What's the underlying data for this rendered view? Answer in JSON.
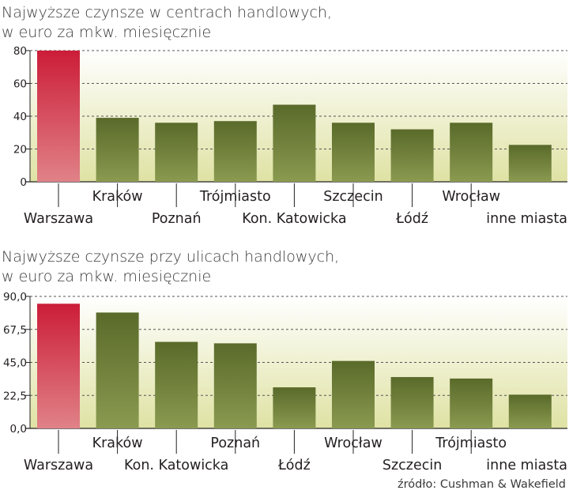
{
  "chart_data": [
    {
      "type": "bar",
      "title": "Najwyższe czynsze w centrach handlowych,",
      "subtitle": "w euro za mkw. miesięcznie",
      "categories": [
        "Warszawa",
        "Kraków",
        "Poznań",
        "Trójmiasto",
        "Kon. Katowicka",
        "Szczecin",
        "Łódź",
        "Wrocław",
        "inne miasta"
      ],
      "values": [
        80,
        39,
        36,
        37,
        47,
        36,
        32,
        36,
        22.5
      ],
      "highlight_index": 0,
      "ylim": [
        0,
        80
      ],
      "yticks": [
        0,
        20,
        40,
        60,
        80
      ],
      "ytick_labels": [
        "0",
        "20",
        "40",
        "60",
        "80"
      ],
      "grid": true,
      "xlabel": "",
      "ylabel": ""
    },
    {
      "type": "bar",
      "title": "Najwyższe czynsze przy ulicach handlowych,",
      "subtitle": "w euro za mkw. miesięcznie",
      "categories": [
        "Warszawa",
        "Kraków",
        "Kon. Katowicka",
        "Poznań",
        "Łódź",
        "Wrocław",
        "Szczecin",
        "Trójmiasto",
        "inne miasta"
      ],
      "values": [
        85,
        79,
        59,
        58,
        28,
        46,
        35,
        34,
        23
      ],
      "highlight_index": 0,
      "ylim": [
        0,
        90
      ],
      "yticks": [
        0,
        22.5,
        45,
        67.5,
        90
      ],
      "ytick_labels": [
        "0,0",
        "22,5",
        "45,0",
        "67,5",
        "90,0"
      ],
      "grid": true,
      "xlabel": "",
      "ylabel": ""
    }
  ],
  "source": "źródło: Cushman & Wakefield",
  "colors": {
    "bar_top": "#5a6a2a",
    "bar_bottom": "#8a9a50",
    "highlight_top": "#cc1d38",
    "highlight_bottom": "#e08288",
    "bg_top": "#ffffff",
    "bg_bottom": "#dfe2a3",
    "grid": "#555555",
    "axis": "#222222"
  }
}
